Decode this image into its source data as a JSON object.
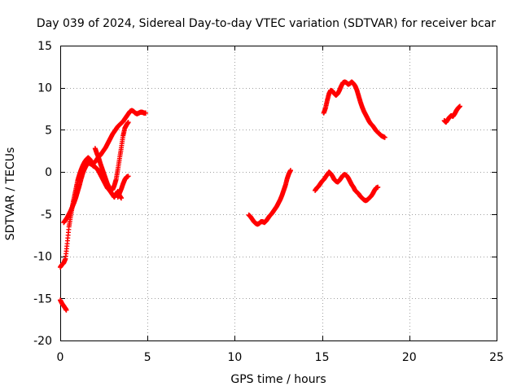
{
  "chart_data": {
    "type": "scatter",
    "title": "Day 039 of 2024, Sidereal Day-to-day VTEC variation (SDTVAR) for receiver bcar",
    "xlabel": "GPS time / hours",
    "ylabel": "SDTVAR / TECUs",
    "xlim": [
      0,
      25
    ],
    "ylim": [
      -20,
      15
    ],
    "xticks": [
      0,
      5,
      10,
      15,
      20,
      25
    ],
    "yticks": [
      -20,
      -15,
      -10,
      -5,
      0,
      5,
      10,
      15
    ],
    "grid": true,
    "color": "#ff0000",
    "marker": "plus",
    "series": [
      {
        "segment": "a",
        "x": [
          0.0,
          0.1,
          0.2,
          0.3,
          0.35
        ],
        "y": [
          -15.2,
          -15.6,
          -15.9,
          -16.2,
          -16.4
        ]
      },
      {
        "segment": "b",
        "x": [
          0.0,
          0.1,
          0.2,
          0.3,
          0.4,
          0.5,
          0.6,
          0.7,
          0.8,
          0.9,
          1.0,
          1.1,
          1.2,
          1.3,
          1.4,
          1.5,
          1.6,
          1.7,
          1.8,
          1.9,
          2.0,
          2.1,
          2.2,
          2.3,
          2.4,
          2.5,
          2.6,
          2.7,
          2.8,
          2.9,
          3.0,
          3.1,
          3.2,
          3.3,
          3.4,
          3.5,
          3.6,
          3.7,
          3.8,
          3.9,
          4.0,
          4.1,
          4.2,
          4.3,
          4.4,
          4.5,
          4.6,
          4.7,
          4.8,
          4.9
        ],
        "y": [
          -11.3,
          -11.0,
          -10.8,
          -10.3,
          -8.5,
          -6.5,
          -5.2,
          -4.0,
          -3.0,
          -2.0,
          -1.0,
          -0.3,
          0.3,
          0.8,
          1.2,
          1.5,
          1.7,
          1.5,
          1.2,
          1.0,
          1.2,
          1.5,
          1.8,
          2.0,
          2.3,
          2.6,
          2.9,
          3.3,
          3.7,
          4.1,
          4.5,
          4.8,
          5.1,
          5.4,
          5.6,
          5.8,
          6.0,
          6.3,
          6.6,
          6.9,
          7.2,
          7.3,
          7.2,
          7.0,
          6.9,
          7.0,
          7.1,
          7.1,
          7.0,
          7.0
        ]
      },
      {
        "segment": "c",
        "x": [
          0.2,
          0.3,
          0.4,
          0.5,
          0.6,
          0.7,
          0.8,
          0.9,
          1.0,
          1.1,
          1.2,
          1.3,
          1.4,
          1.5,
          1.6,
          1.7,
          1.8,
          1.9,
          2.0,
          2.1,
          2.2,
          2.3,
          2.4,
          2.5,
          2.6,
          2.7,
          2.8,
          2.9,
          3.0,
          3.1,
          3.2,
          3.3,
          3.4,
          3.5
        ],
        "y": [
          -6.0,
          -5.7,
          -5.4,
          -5.0,
          -4.6,
          -4.1,
          -3.6,
          -3.0,
          -2.3,
          -1.6,
          -0.8,
          -0.1,
          0.4,
          0.8,
          1.1,
          1.0,
          0.9,
          0.7,
          0.6,
          0.4,
          0.1,
          -0.3,
          -0.7,
          -1.1,
          -1.5,
          -1.9,
          -2.1,
          -2.4,
          -2.7,
          -3.0,
          -2.6,
          -2.3,
          -2.8,
          -3.1
        ]
      },
      {
        "segment": "d",
        "x": [
          2.0,
          2.1,
          2.2,
          2.3,
          2.4,
          2.5,
          2.6,
          2.7,
          2.8,
          2.9,
          3.0,
          3.1,
          3.2,
          3.3,
          3.4,
          3.5,
          3.6,
          3.7,
          3.8,
          3.9
        ],
        "y": [
          2.8,
          2.2,
          1.7,
          1.0,
          0.4,
          -0.2,
          -0.8,
          -1.4,
          -1.8,
          -2.0,
          -2.1,
          -1.6,
          -0.9,
          0.3,
          1.6,
          2.9,
          4.3,
          5.2,
          5.6,
          5.9
        ]
      },
      {
        "segment": "e",
        "x": [
          3.3,
          3.4,
          3.5,
          3.6,
          3.7,
          3.8,
          3.9
        ],
        "y": [
          -3.0,
          -2.5,
          -2.0,
          -1.4,
          -0.9,
          -0.6,
          -0.5
        ]
      },
      {
        "segment": "f",
        "x": [
          10.8,
          10.9,
          11.0,
          11.1,
          11.2,
          11.3,
          11.4,
          11.5,
          11.6,
          11.7,
          11.8,
          11.9,
          12.0,
          12.1,
          12.2,
          12.3,
          12.4,
          12.5,
          12.6,
          12.7,
          12.8,
          12.9,
          13.0,
          13.1,
          13.2
        ],
        "y": [
          -5.1,
          -5.3,
          -5.6,
          -5.9,
          -6.1,
          -6.2,
          -6.1,
          -5.9,
          -5.9,
          -6.0,
          -5.8,
          -5.5,
          -5.2,
          -5.0,
          -4.7,
          -4.4,
          -4.1,
          -3.7,
          -3.3,
          -2.8,
          -2.2,
          -1.6,
          -0.8,
          -0.2,
          0.2
        ]
      },
      {
        "segment": "g",
        "x": [
          14.6,
          14.7,
          14.8,
          14.9,
          15.0,
          15.1,
          15.2,
          15.3,
          15.4,
          15.5,
          15.6,
          15.7,
          15.8,
          15.9,
          16.0,
          16.1,
          16.2,
          16.3,
          16.4,
          16.5,
          16.6,
          16.7,
          16.8,
          16.9,
          17.0,
          17.1,
          17.2,
          17.3,
          17.4,
          17.5,
          17.6,
          17.7,
          17.8,
          17.9,
          18.0,
          18.1,
          18.2
        ],
        "y": [
          -2.2,
          -1.9,
          -1.7,
          -1.4,
          -1.1,
          -0.9,
          -0.6,
          -0.3,
          0.0,
          -0.2,
          -0.5,
          -0.9,
          -1.1,
          -1.2,
          -1.0,
          -0.7,
          -0.4,
          -0.3,
          -0.4,
          -0.7,
          -1.1,
          -1.5,
          -1.8,
          -2.2,
          -2.4,
          -2.6,
          -2.9,
          -3.1,
          -3.3,
          -3.4,
          -3.3,
          -3.1,
          -2.9,
          -2.6,
          -2.2,
          -1.9,
          -1.8
        ]
      },
      {
        "segment": "h",
        "x": [
          15.1,
          15.2,
          15.3,
          15.4,
          15.5,
          15.6,
          15.7,
          15.8,
          15.9,
          16.0,
          16.1,
          16.2,
          16.3,
          16.4,
          16.5,
          16.6,
          16.7,
          16.8,
          16.9,
          17.0,
          17.1,
          17.2,
          17.3,
          17.4,
          17.5,
          17.6,
          17.7,
          17.8,
          17.9,
          18.0,
          18.1,
          18.2,
          18.3,
          18.4,
          18.5,
          18.6
        ],
        "y": [
          7.0,
          7.6,
          8.5,
          9.3,
          9.7,
          9.6,
          9.3,
          9.1,
          9.3,
          9.7,
          10.2,
          10.6,
          10.7,
          10.6,
          10.4,
          10.5,
          10.7,
          10.5,
          10.2,
          9.7,
          9.0,
          8.3,
          7.7,
          7.2,
          6.8,
          6.4,
          6.0,
          5.7,
          5.5,
          5.2,
          4.9,
          4.7,
          4.5,
          4.3,
          4.2,
          4.1
        ]
      },
      {
        "segment": "i",
        "x": [
          22.0,
          22.1,
          22.2,
          22.3,
          22.4,
          22.5,
          22.6,
          22.7,
          22.8,
          22.9
        ],
        "y": [
          6.1,
          5.9,
          6.2,
          6.5,
          6.7,
          6.6,
          6.9,
          7.3,
          7.6,
          7.8
        ]
      }
    ]
  }
}
